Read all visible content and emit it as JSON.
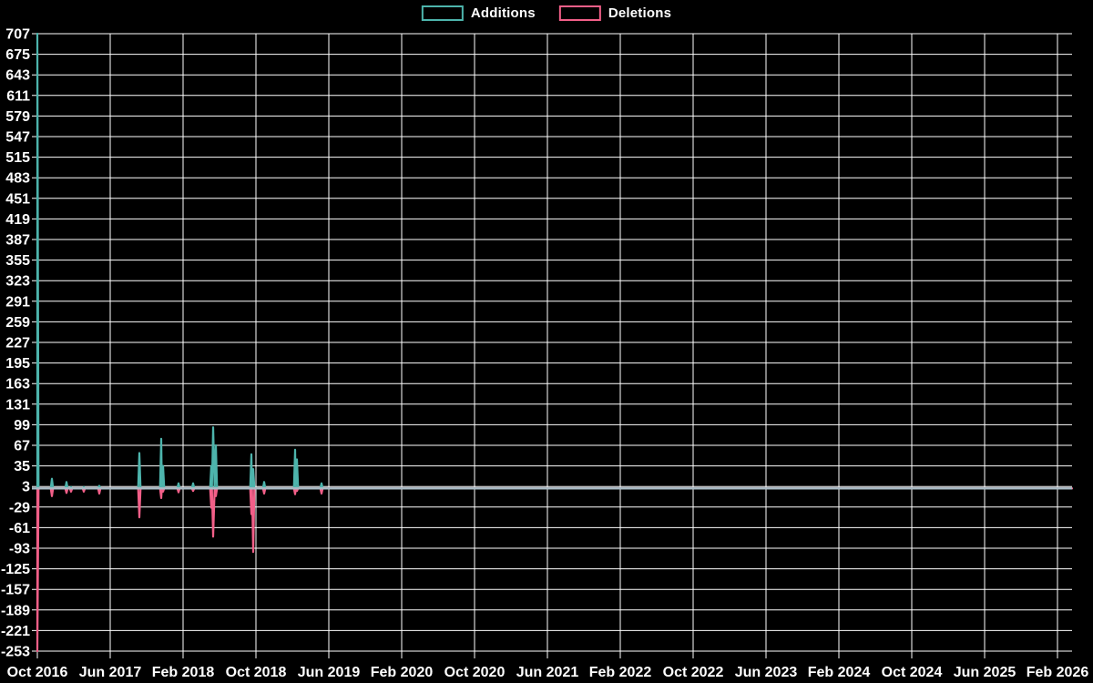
{
  "legend": {
    "items": [
      {
        "label": "Additions",
        "color": "#4db4ac"
      },
      {
        "label": "Deletions",
        "color": "#f25f88"
      }
    ]
  },
  "colors": {
    "background": "#000000",
    "grid": "#ffffff",
    "zero_line": "#a9bcc6",
    "text": "#ffffff"
  },
  "chart_data": {
    "type": "line",
    "title": "",
    "legend_position": "top-center",
    "grid": true,
    "x_axis": {
      "unit": "months_since_first_tick",
      "tick_labels": [
        "Oct 2016",
        "Jun 2017",
        "Feb 2018",
        "Oct 2018",
        "Jun 2019",
        "Feb 2020",
        "Oct 2020",
        "Jun 2021",
        "Feb 2022",
        "Oct 2022",
        "Jun 2023",
        "Feb 2024",
        "Oct 2024",
        "Jun 2025",
        "Feb 2026"
      ],
      "months_per_tick": 8
    },
    "y_axis": {
      "ticks": [
        707,
        675,
        643,
        611,
        579,
        547,
        515,
        483,
        451,
        419,
        387,
        355,
        323,
        291,
        259,
        227,
        195,
        163,
        131,
        99,
        67,
        35,
        3,
        -29,
        -61,
        -93,
        -125,
        -157,
        -189,
        -221,
        -253
      ],
      "min": -253,
      "max": 707,
      "step": 32
    },
    "baseline_value": 0,
    "series": [
      {
        "name": "Additions",
        "color": "#4db4ac",
        "points": [
          [
            0,
            707
          ],
          [
            1.6,
            15
          ],
          [
            3.2,
            10
          ],
          [
            3.7,
            2
          ],
          [
            5.1,
            2
          ],
          [
            6.8,
            4
          ],
          [
            11.2,
            55
          ],
          [
            13.6,
            77
          ],
          [
            13.8,
            35
          ],
          [
            15.5,
            8
          ],
          [
            17.1,
            8
          ],
          [
            19.1,
            35
          ],
          [
            19.3,
            95
          ],
          [
            19.6,
            67
          ],
          [
            23.5,
            53
          ],
          [
            23.7,
            30
          ],
          [
            24.9,
            10
          ],
          [
            28.3,
            60
          ],
          [
            28.5,
            45
          ],
          [
            31.2,
            8
          ]
        ]
      },
      {
        "name": "Deletions",
        "color": "#f25f88",
        "points": [
          [
            0,
            -253
          ],
          [
            1.6,
            -12
          ],
          [
            3.2,
            -7
          ],
          [
            3.7,
            -5
          ],
          [
            5.1,
            -5
          ],
          [
            6.8,
            -8
          ],
          [
            11.2,
            -45
          ],
          [
            13.6,
            -15
          ],
          [
            13.8,
            -5
          ],
          [
            15.5,
            -6
          ],
          [
            17.1,
            -4
          ],
          [
            19.1,
            -30
          ],
          [
            19.3,
            -75
          ],
          [
            19.6,
            -12
          ],
          [
            23.5,
            -40
          ],
          [
            23.7,
            -99
          ],
          [
            24.9,
            -8
          ],
          [
            28.3,
            -9
          ],
          [
            28.5,
            -4
          ],
          [
            31.2,
            -8
          ]
        ]
      }
    ]
  }
}
